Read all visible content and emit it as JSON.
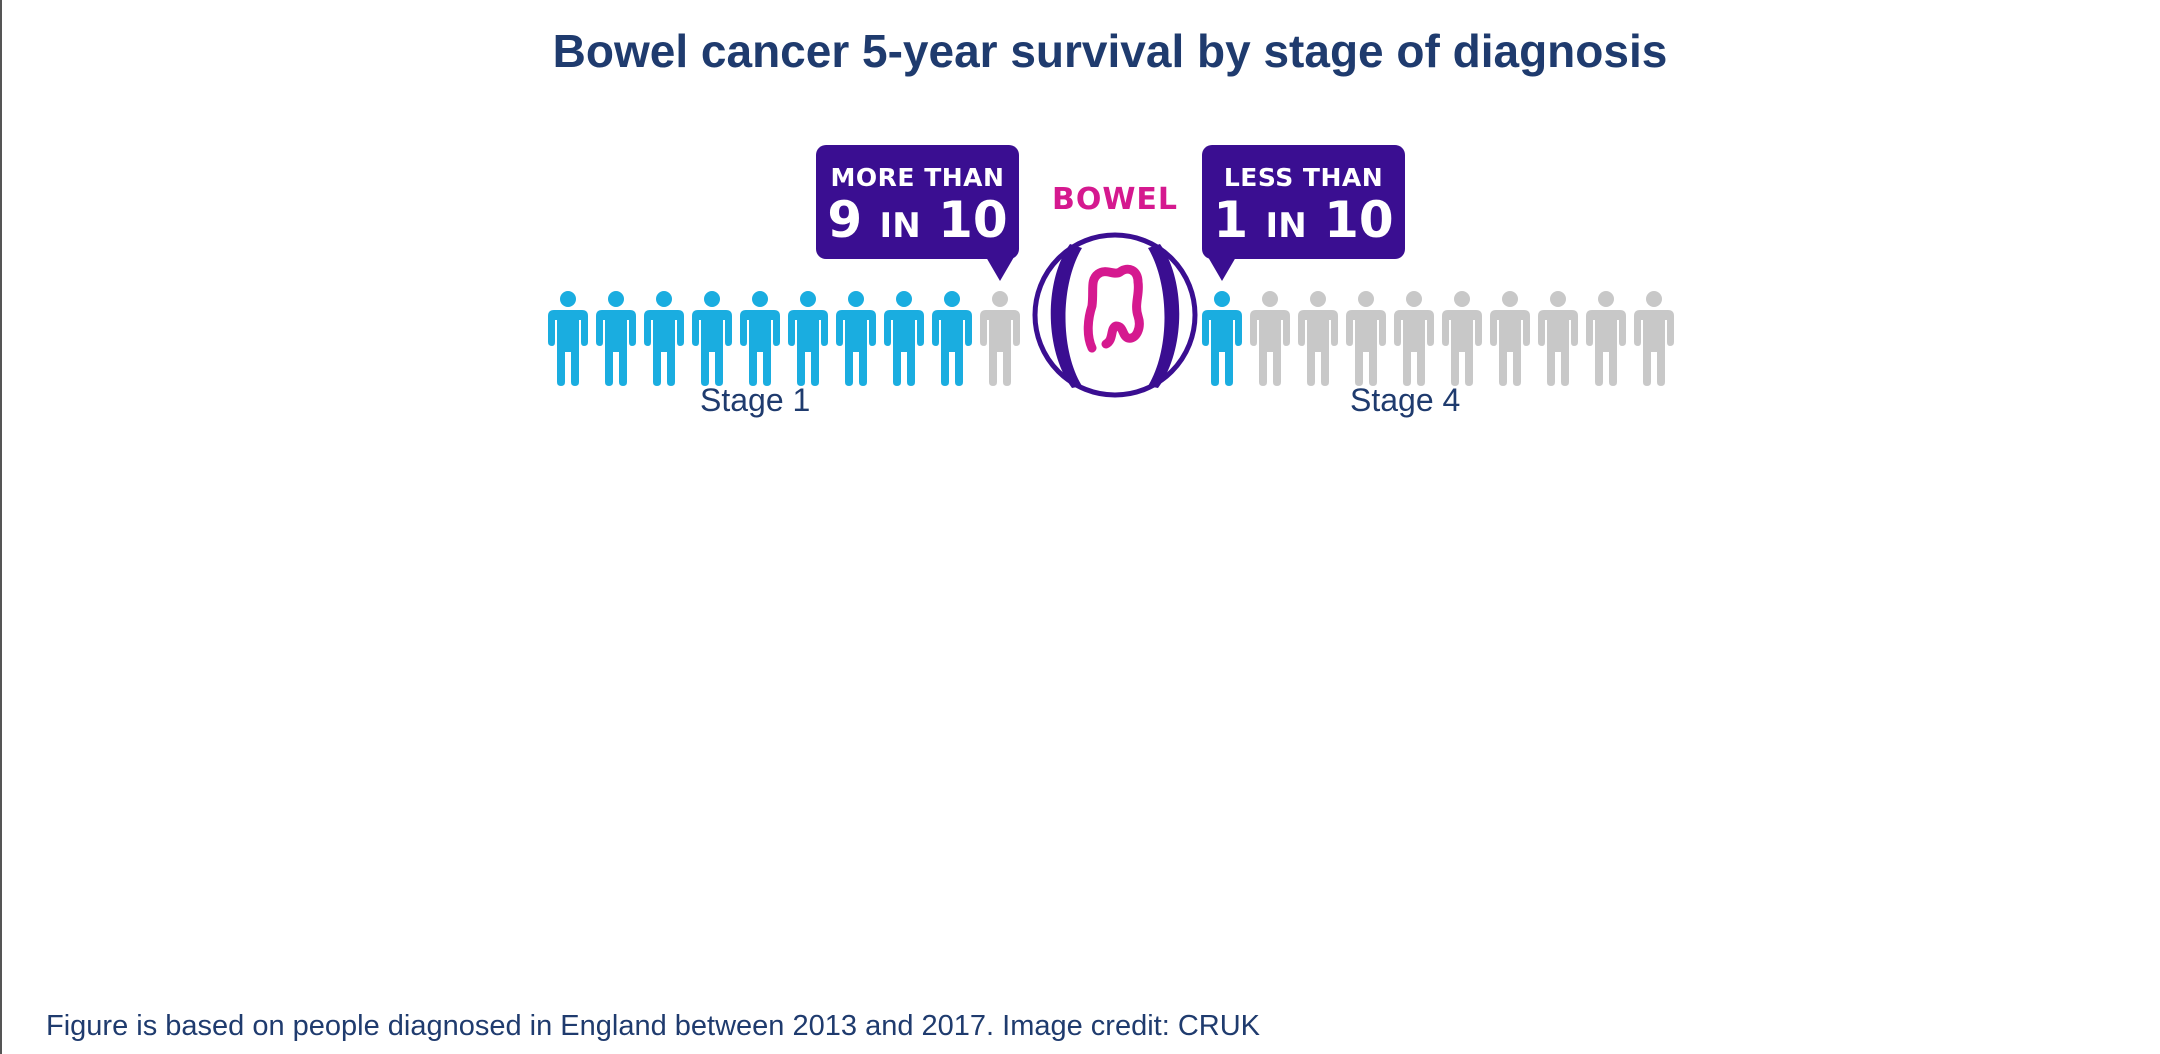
{
  "title": "Bowel cancer 5-year survival by stage of diagnosis",
  "infographic": {
    "left_callout": {
      "line1": "MORE THAN",
      "num": "9",
      "in_word": "IN",
      "denom": "10"
    },
    "right_callout": {
      "line1": "LESS THAN",
      "num": "1",
      "in_word": "IN",
      "denom": "10"
    },
    "organ_label": "BOWEL",
    "organ_icon": "bowel-icon",
    "stage_left": {
      "label": "Stage 1",
      "survivors": 9,
      "total": 10
    },
    "stage_right": {
      "label": "Stage 4",
      "survivors": 1,
      "total": 10
    },
    "colors": {
      "callout_bg": "#3a0e91",
      "survivor": "#1aade0",
      "non_survivor": "#c8c8c8",
      "organ": "#d5198f",
      "title": "#1f3b6e"
    }
  },
  "footnote": "Figure is based on people diagnosed in England between 2013 and 2017. Image credit: CRUK"
}
